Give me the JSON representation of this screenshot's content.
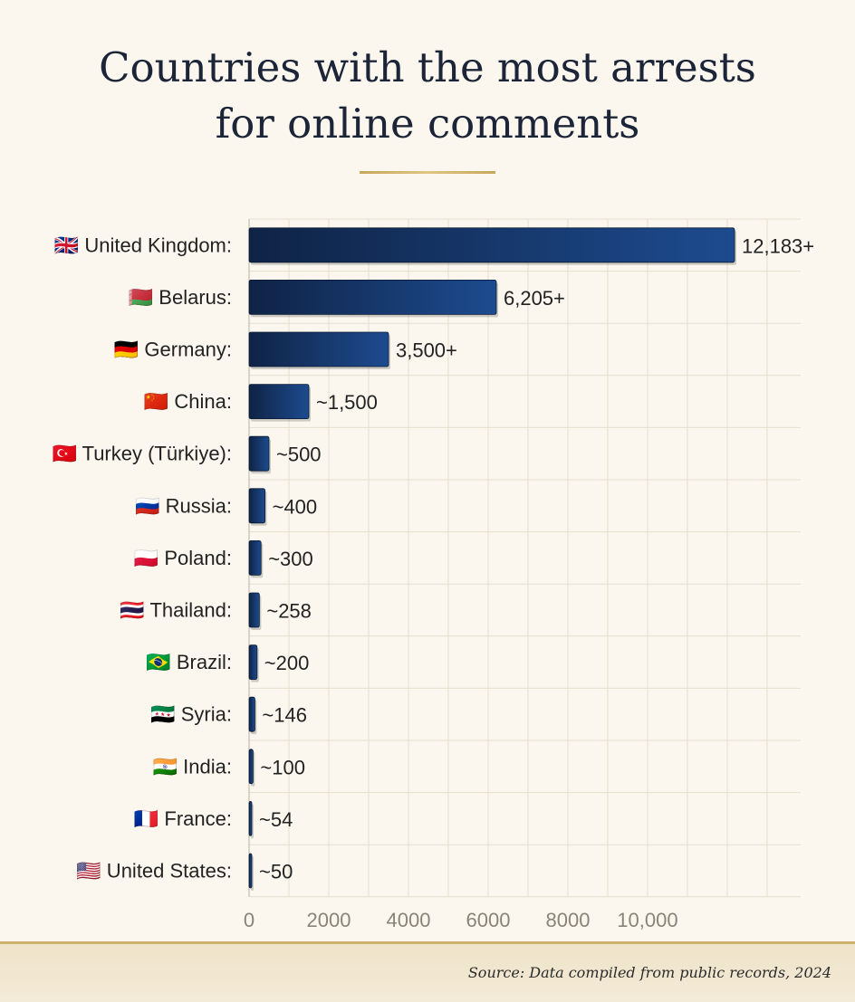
{
  "title": {
    "line1": "Countries with the most arrests",
    "line2": "for online comments"
  },
  "source": "Source: Data compiled from public records, 2024",
  "colors": {
    "bar_dark": "#0f2345",
    "bar_light": "#1d4b8f",
    "accent": "#c6a75a",
    "grid": "#e6dfcf"
  },
  "chart_data": {
    "type": "bar",
    "orientation": "horizontal",
    "xlim": [
      0,
      12183
    ],
    "xticks": [
      0,
      2000,
      4000,
      6000,
      8000,
      10000
    ],
    "xtick_labels": [
      "0",
      "2000",
      "4000",
      "6000",
      "8000",
      "10,000"
    ],
    "grid": true,
    "bars": [
      {
        "flag": "🇬🇧",
        "label": "United Kingdom:",
        "value": 12183,
        "value_label": "12,183+"
      },
      {
        "flag": "🇧🇾",
        "label": "Belarus:",
        "value": 6205,
        "value_label": "6,205+"
      },
      {
        "flag": "🇩🇪",
        "label": "Germany:",
        "value": 3500,
        "value_label": "3,500+"
      },
      {
        "flag": "🇨🇳",
        "label": "China:",
        "value": 1500,
        "value_label": "~1,500"
      },
      {
        "flag": "🇹🇷",
        "label": "Turkey (Türkiye):",
        "value": 500,
        "value_label": "~500"
      },
      {
        "flag": "🇷🇺",
        "label": "Russia:",
        "value": 400,
        "value_label": "~400"
      },
      {
        "flag": "🇵🇱",
        "label": "Poland:",
        "value": 300,
        "value_label": "~300"
      },
      {
        "flag": "🇹🇭",
        "label": "Thailand:",
        "value": 258,
        "value_label": "~258"
      },
      {
        "flag": "🇧🇷",
        "label": "Brazil:",
        "value": 200,
        "value_label": "~200"
      },
      {
        "flag": "🇸🇾",
        "label": "Syria:",
        "value": 146,
        "value_label": "~146"
      },
      {
        "flag": "🇮🇳",
        "label": "India:",
        "value": 100,
        "value_label": "~100"
      },
      {
        "flag": "🇫🇷",
        "label": "France:",
        "value": 54,
        "value_label": "~54"
      },
      {
        "flag": "🇺🇸",
        "label": "United States:",
        "value": 50,
        "value_label": "~50"
      }
    ]
  }
}
